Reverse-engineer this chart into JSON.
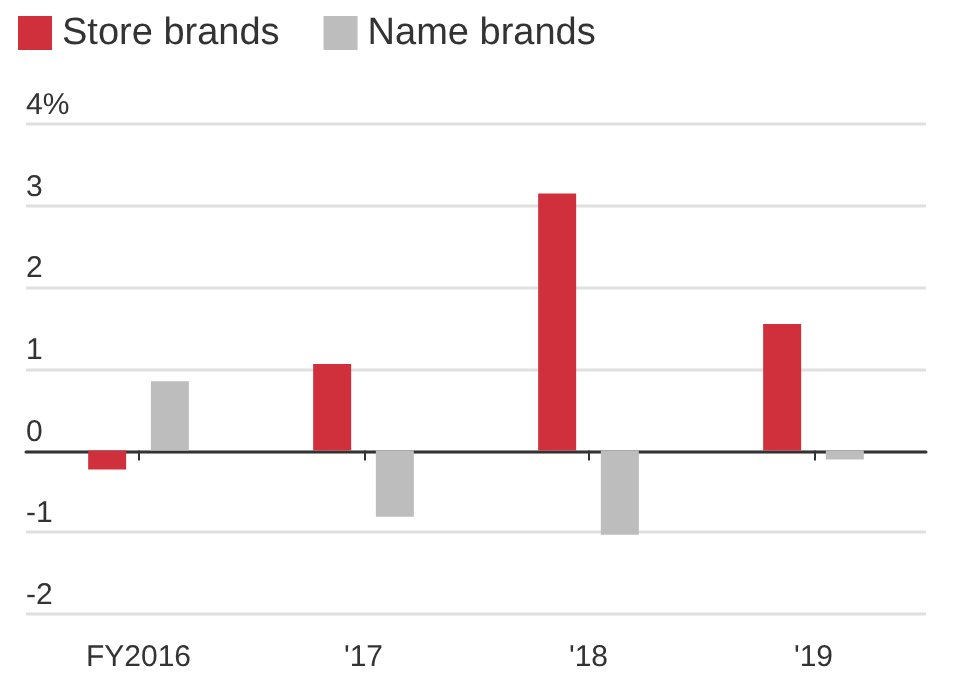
{
  "chart_data": {
    "type": "bar",
    "categories": [
      "FY2016",
      "'17",
      "'18",
      "'19"
    ],
    "series": [
      {
        "name": "Store brands",
        "color": "#cf303b",
        "values": [
          -0.23,
          1.06,
          3.15,
          1.55
        ]
      },
      {
        "name": "Name brands",
        "color": "#bdbdbd",
        "values": [
          0.85,
          -0.81,
          -1.03,
          -0.11
        ]
      }
    ],
    "ylim": [
      -2.05,
      4
    ],
    "yticks": [
      -2,
      -1,
      0,
      1,
      2,
      3,
      {
        "value": 4,
        "label": "4%"
      }
    ],
    "grid": "y",
    "legend": "top left"
  }
}
